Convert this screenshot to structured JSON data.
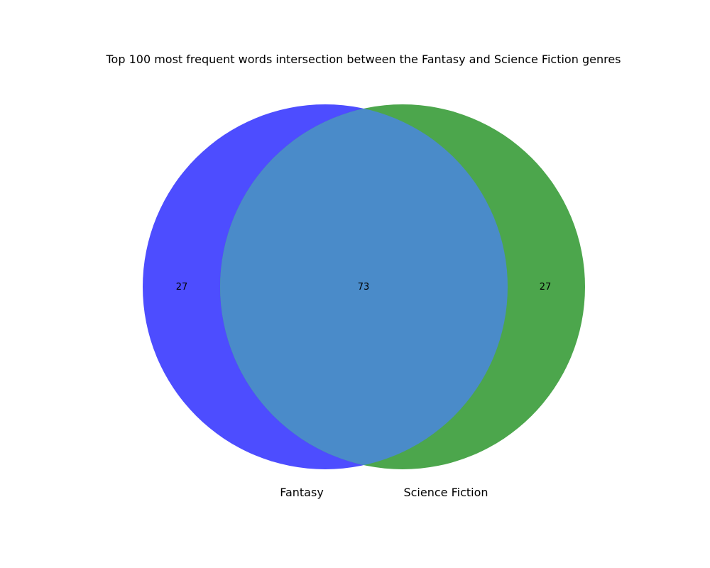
{
  "title": "Top 100 most frequent words intersection between the Fantasy and Science Fiction genres",
  "sets": [
    {
      "name": "Fantasy",
      "only_count": "27",
      "color": "#4d4dff"
    },
    {
      "name": "Science Fiction",
      "only_count": "27",
      "color": "#4ca64c"
    }
  ],
  "intersection": {
    "count": "73",
    "color": "#4a8bc9"
  },
  "chart_data": {
    "type": "venn",
    "title": "Top 100 most frequent words intersection between the Fantasy and Science Fiction genres",
    "sets": [
      "Fantasy",
      "Science Fiction"
    ],
    "subsets": {
      "Fantasy only": 27,
      "Science Fiction only": 27,
      "Fantasy & Science Fiction": 73
    }
  }
}
